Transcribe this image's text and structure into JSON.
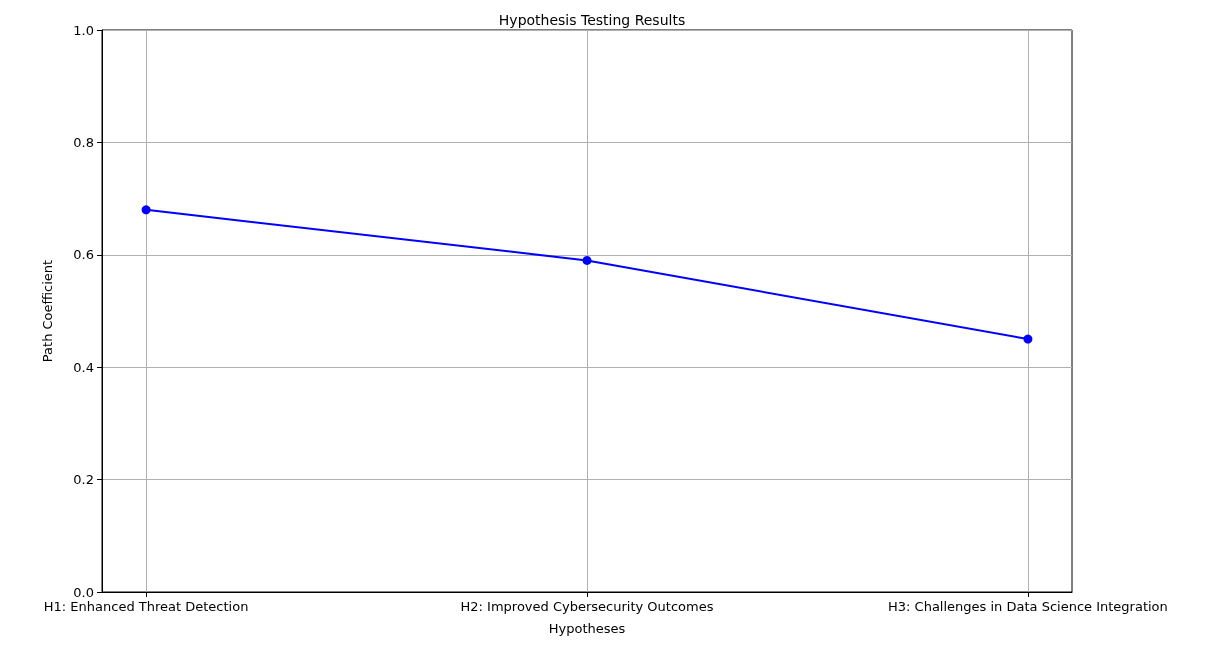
{
  "chart_data": {
    "type": "line",
    "title": "Hypothesis Testing Results",
    "xlabel": "Hypotheses",
    "ylabel": "Path Coefficient",
    "categories": [
      "H1: Enhanced Threat Detection",
      "H2: Improved Cybersecurity Outcomes",
      "H3: Challenges in Data Science Integration"
    ],
    "series": [
      {
        "color": "#0000ff",
        "values": [
          0.68,
          0.59,
          0.45
        ]
      }
    ],
    "ylim": [
      0,
      1
    ],
    "yticks": [
      {
        "value": 0,
        "label": "0.0"
      },
      {
        "value": 0.2,
        "label": "0.2"
      },
      {
        "value": 0.4,
        "label": "0.4"
      },
      {
        "value": 0.6,
        "label": "0.6"
      },
      {
        "value": 0.8,
        "label": "0.8"
      },
      {
        "value": 1,
        "label": "1.0"
      }
    ],
    "grid": true,
    "marker": "circle",
    "line_style": "solid"
  }
}
